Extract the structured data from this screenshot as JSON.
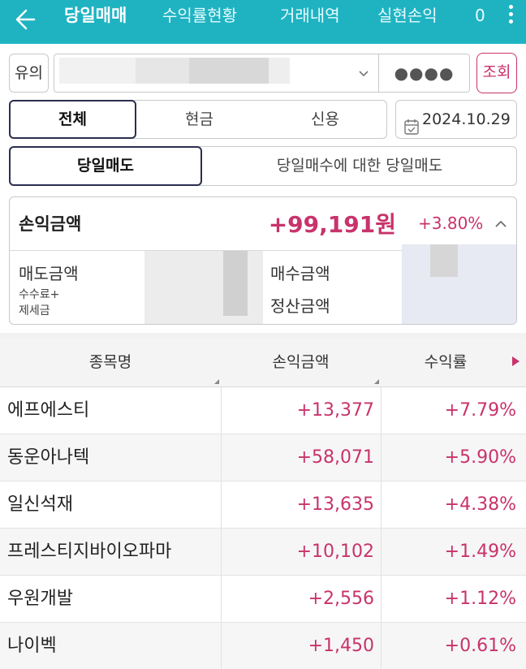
{
  "nav": {
    "tabs": [
      {
        "label": "당일매매",
        "active": true
      },
      {
        "label": "수익률현황"
      },
      {
        "label": "거래내역"
      },
      {
        "label": "실현손익"
      },
      {
        "label": "0"
      }
    ]
  },
  "account": {
    "label": "유의",
    "password_mask": "●●●●",
    "search_label": "조회"
  },
  "filter": {
    "type_tabs": [
      "전체",
      "현금",
      "신용"
    ],
    "date": "2024.10.29",
    "sell_tabs": [
      "당일매도",
      "당일매수에 대한 당일매도"
    ]
  },
  "summary": {
    "pl_label": "손익금액",
    "pl_amount": "+99,191원",
    "pl_rate": "+3.80%",
    "sell_amount_label": "매도금액",
    "fee_tax_label_1": "수수료+",
    "fee_tax_label_2": "제세금",
    "buy_amount_label": "매수금액",
    "settle_amount_label": "정산금액"
  },
  "table": {
    "headers": [
      "종목명",
      "손익금액",
      "수익률"
    ],
    "rows": [
      {
        "name": "에프에스티",
        "amount": "+13,377",
        "rate": "+7.79%"
      },
      {
        "name": "동운아나텍",
        "amount": "+58,071",
        "rate": "+5.90%"
      },
      {
        "name": "일신석재",
        "amount": "+13,635",
        "rate": "+4.38%"
      },
      {
        "name": "프레스티지바이오파마",
        "amount": "+10,102",
        "rate": "+1.49%"
      },
      {
        "name": "우원개발",
        "amount": "+2,556",
        "rate": "+1.12%"
      },
      {
        "name": "나이벡",
        "amount": "+1,450",
        "rate": "+0.61%"
      }
    ]
  },
  "colors": {
    "brand": "#1fb3c2",
    "profit": "#c8336b",
    "active_border": "#2b2f4f"
  }
}
